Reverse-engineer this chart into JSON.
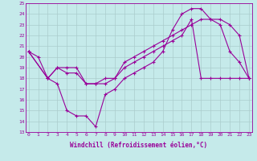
{
  "xlabel": "Windchill (Refroidissement éolien,°C)",
  "x_labels": [
    "0",
    "1",
    "2",
    "3",
    "4",
    "5",
    "6",
    "7",
    "8",
    "9",
    "10",
    "11",
    "12",
    "13",
    "14",
    "15",
    "16",
    "17",
    "18",
    "19",
    "20",
    "21",
    "22",
    "23"
  ],
  "ylim": [
    13,
    25
  ],
  "yticks": [
    13,
    14,
    15,
    16,
    17,
    18,
    19,
    20,
    21,
    22,
    23,
    24,
    25
  ],
  "background_color": "#c5eaea",
  "grid_color": "#aacccc",
  "line_color": "#990099",
  "series1_x": [
    0,
    1,
    2,
    3,
    4,
    5,
    6,
    7,
    8,
    9,
    10,
    11,
    12,
    13,
    14,
    15,
    16,
    17,
    18,
    19,
    20,
    21,
    22,
    23
  ],
  "series1_y": [
    20.5,
    20.0,
    18.0,
    17.5,
    15.0,
    14.5,
    14.5,
    13.5,
    16.5,
    17.0,
    18.0,
    18.5,
    19.0,
    19.5,
    20.5,
    22.5,
    24.0,
    24.5,
    24.5,
    23.5,
    23.0,
    20.5,
    19.5,
    18.0
  ],
  "series2_x": [
    0,
    2,
    3,
    4,
    5,
    6,
    7,
    8,
    9,
    10,
    11,
    12,
    13,
    14,
    15,
    16,
    17,
    18,
    19,
    20,
    21,
    22,
    23
  ],
  "series2_y": [
    20.5,
    18.0,
    19.0,
    19.0,
    19.0,
    17.5,
    17.5,
    17.5,
    18.0,
    19.5,
    20.0,
    20.5,
    21.0,
    21.5,
    22.0,
    22.5,
    23.0,
    23.5,
    23.5,
    23.5,
    23.0,
    22.0,
    18.0
  ],
  "series3_x": [
    0,
    2,
    3,
    4,
    5,
    6,
    7,
    8,
    9,
    10,
    11,
    12,
    13,
    14,
    15,
    16,
    17,
    18,
    19,
    20,
    21,
    22,
    23
  ],
  "series3_y": [
    20.5,
    18.0,
    19.0,
    18.5,
    18.5,
    17.5,
    17.5,
    18.0,
    18.0,
    19.0,
    19.5,
    20.0,
    20.5,
    21.0,
    21.5,
    22.0,
    23.5,
    18.0,
    18.0,
    18.0,
    18.0,
    18.0,
    18.0
  ]
}
